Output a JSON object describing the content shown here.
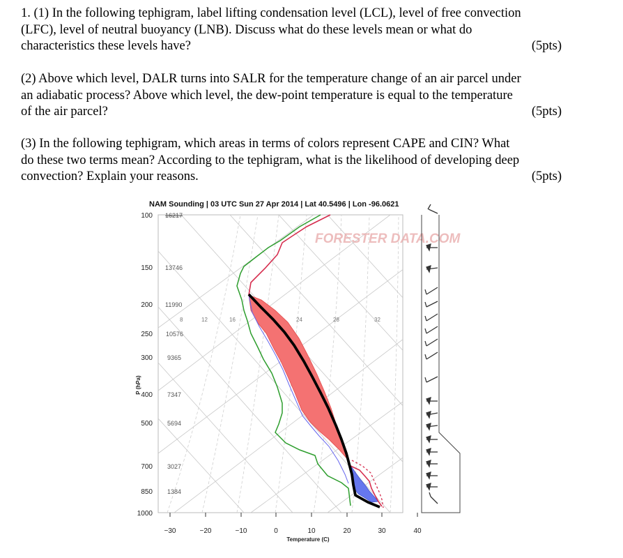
{
  "questions": [
    {
      "lines": [
        "1. (1) In the following tephigram, label lifting condensation level (LCL), level of free convection",
        "(LFC), level of neutral buoyancy (LNB). Discuss what do these levels mean or what do",
        "characteristics these levels have?"
      ],
      "points": "(5pts)"
    },
    {
      "lines": [
        "(2) Above which level, DALR turns into SALR for the temperature change of an air parcel under",
        "an adiabatic process? Above which level, the dew-point temperature is equal to the temperature",
        "of the air parcel?"
      ],
      "points": "(5pts)"
    },
    {
      "lines": [
        "(3) In the following tephigram, which areas in terms of colors represent CAPE and CIN? What",
        "do these two terms mean? According to the tephigram, what is the likelihood of developing deep",
        "convection? Explain your reasons."
      ],
      "points": "(5pts)"
    }
  ],
  "chart_data": {
    "type": "line",
    "title": "NAM Sounding | 03 UTC Sun 27 Apr 2014 | Lat 40.5496 | Lon -96.0621",
    "xlabel": "Temperature (C)",
    "ylabel": "P (hPa)",
    "watermark": "FORESTER DATA.COM",
    "x_ticks": [
      "−30",
      "−20",
      "−10",
      "0",
      "10",
      "20",
      "30",
      "40"
    ],
    "pressure_levels": [
      {
        "p": "100",
        "height": "16217"
      },
      {
        "p": "150",
        "height": "13746"
      },
      {
        "p": "200",
        "height": "11990"
      },
      {
        "p": "250",
        "height": "10576"
      },
      {
        "p": "300",
        "height": "9365"
      },
      {
        "p": "400",
        "height": "7347"
      },
      {
        "p": "500",
        "height": "5694"
      },
      {
        "p": "700",
        "height": "3027"
      },
      {
        "p": "850",
        "height": "1384"
      },
      {
        "p": "1000",
        "height": ""
      }
    ],
    "mixing_ratio_labels": [
      "8",
      "12",
      "16",
      "24",
      "28",
      "32"
    ],
    "series": [
      {
        "name": "Temperature",
        "color": "#d62d4e"
      },
      {
        "name": "Dew point",
        "color": "#2e9e2e"
      },
      {
        "name": "Virtual temperature",
        "color": "#6666ee"
      },
      {
        "name": "Parcel path",
        "color": "#000000"
      }
    ],
    "areas": [
      {
        "name": "Red area",
        "color": "#f47272"
      },
      {
        "name": "Blue area",
        "color": "#6677ee"
      }
    ]
  }
}
